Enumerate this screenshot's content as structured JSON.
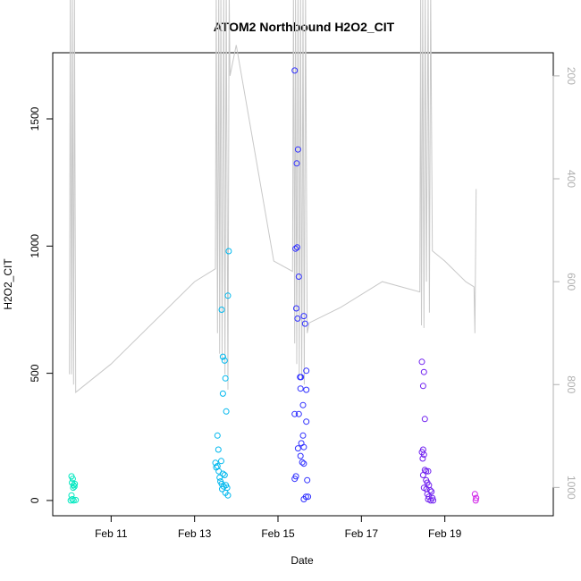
{
  "chart_data": {
    "type": "scatter",
    "title": "ATOM2 Northbound H2O2_CIT",
    "xlabel": "Date",
    "ylabel": "H2O2_CIT",
    "x_unit": "days since Feb 10 00:00",
    "xlim": [
      9.6,
      21.6
    ],
    "ylim": [
      -60,
      1760
    ],
    "x_ticks": [
      {
        "value": 11,
        "label": "Feb 11"
      },
      {
        "value": 13,
        "label": "Feb 13"
      },
      {
        "value": 15,
        "label": "Feb 15"
      },
      {
        "value": 17,
        "label": "Feb 17"
      },
      {
        "value": 19,
        "label": "Feb 19"
      }
    ],
    "y_ticks": [
      {
        "value": 0,
        "label": "0"
      },
      {
        "value": 500,
        "label": "500"
      },
      {
        "value": 1000,
        "label": "1000"
      },
      {
        "value": 1500,
        "label": "1500"
      }
    ],
    "y2lim": [
      155,
      1055
    ],
    "y2_ticks": [
      {
        "value": 200,
        "label": "200"
      },
      {
        "value": 400,
        "label": "400"
      },
      {
        "value": 600,
        "label": "600"
      },
      {
        "value": 800,
        "label": "800"
      },
      {
        "value": 1000,
        "label": "1000"
      }
    ],
    "y2_reversed": true,
    "grid": false,
    "series": [
      {
        "color": "#00e8c0",
        "points": [
          [
            10.05,
            95
          ],
          [
            10.08,
            85
          ],
          [
            10.06,
            70
          ],
          [
            10.1,
            60
          ],
          [
            10.12,
            55
          ],
          [
            10.09,
            50
          ],
          [
            10.13,
            65
          ],
          [
            10.05,
            20
          ],
          [
            10.07,
            5
          ],
          [
            10.1,
            0
          ],
          [
            10.15,
            2
          ],
          [
            10.03,
            0
          ]
        ]
      },
      {
        "color": "#00b8ee",
        "points": [
          [
            13.5,
            148
          ],
          [
            13.55,
            135
          ],
          [
            13.58,
            115
          ],
          [
            13.52,
            130
          ],
          [
            13.6,
            90
          ],
          [
            13.62,
            75
          ],
          [
            13.65,
            65
          ],
          [
            13.7,
            55
          ],
          [
            13.68,
            105
          ],
          [
            13.72,
            100
          ],
          [
            13.75,
            60
          ],
          [
            13.78,
            50
          ],
          [
            13.66,
            45
          ],
          [
            13.8,
            20
          ],
          [
            13.74,
            30
          ],
          [
            13.57,
            200
          ],
          [
            13.55,
            255
          ],
          [
            13.64,
            155
          ],
          [
            13.68,
            420
          ],
          [
            13.74,
            480
          ],
          [
            13.72,
            550
          ],
          [
            13.68,
            565
          ],
          [
            13.65,
            750
          ],
          [
            13.8,
            805
          ],
          [
            13.82,
            980
          ],
          [
            13.76,
            350
          ]
        ]
      },
      {
        "color": "#3030ff",
        "points": [
          [
            15.4,
            1690
          ],
          [
            15.48,
            1380
          ],
          [
            15.45,
            1325
          ],
          [
            15.42,
            990
          ],
          [
            15.46,
            995
          ],
          [
            15.5,
            880
          ],
          [
            15.62,
            725
          ],
          [
            15.44,
            755
          ],
          [
            15.47,
            715
          ],
          [
            15.65,
            695
          ],
          [
            15.68,
            510
          ],
          [
            15.55,
            485
          ],
          [
            15.53,
            485
          ],
          [
            15.54,
            440
          ],
          [
            15.68,
            435
          ],
          [
            15.6,
            375
          ],
          [
            15.4,
            340
          ],
          [
            15.5,
            340
          ],
          [
            15.68,
            310
          ],
          [
            15.6,
            255
          ],
          [
            15.56,
            225
          ],
          [
            15.62,
            210
          ],
          [
            15.48,
            205
          ],
          [
            15.54,
            175
          ],
          [
            15.58,
            150
          ],
          [
            15.62,
            145
          ],
          [
            15.43,
            95
          ],
          [
            15.4,
            85
          ],
          [
            15.7,
            80
          ],
          [
            15.62,
            5
          ],
          [
            15.67,
            15
          ],
          [
            15.72,
            15
          ]
        ]
      },
      {
        "color": "#7020f0",
        "points": [
          [
            18.45,
            545
          ],
          [
            18.5,
            505
          ],
          [
            18.48,
            450
          ],
          [
            18.52,
            320
          ],
          [
            18.45,
            190
          ],
          [
            18.48,
            200
          ],
          [
            18.5,
            180
          ],
          [
            18.47,
            165
          ],
          [
            18.52,
            120
          ],
          [
            18.55,
            115
          ],
          [
            18.6,
            115
          ],
          [
            18.48,
            100
          ],
          [
            18.55,
            80
          ],
          [
            18.58,
            70
          ],
          [
            18.62,
            60
          ],
          [
            18.5,
            50
          ],
          [
            18.56,
            45
          ],
          [
            18.65,
            40
          ],
          [
            18.68,
            35
          ],
          [
            18.58,
            25
          ],
          [
            18.62,
            15
          ],
          [
            18.7,
            10
          ],
          [
            18.6,
            5
          ],
          [
            18.66,
            0
          ],
          [
            18.72,
            0
          ]
        ]
      },
      {
        "color": "#d020e8",
        "points": [
          [
            19.72,
            25
          ],
          [
            19.75,
            10
          ],
          [
            19.74,
            0
          ]
        ]
      }
    ],
    "secondary_line": {
      "name": "",
      "color": "#c8c8c8",
      "points": [
        [
          10.0,
          780
        ],
        [
          10.02,
          35
        ],
        [
          10.05,
          780
        ],
        [
          10.07,
          35
        ],
        [
          10.1,
          800
        ],
        [
          10.12,
          35
        ],
        [
          10.15,
          815
        ],
        [
          11.0,
          760
        ],
        [
          13.0,
          600
        ],
        [
          13.5,
          575
        ],
        [
          13.52,
          35
        ],
        [
          13.55,
          700
        ],
        [
          13.58,
          35
        ],
        [
          13.6,
          740
        ],
        [
          13.63,
          35
        ],
        [
          13.66,
          750
        ],
        [
          13.7,
          35
        ],
        [
          13.73,
          780
        ],
        [
          13.76,
          35
        ],
        [
          13.8,
          810
        ],
        [
          13.83,
          35
        ],
        [
          13.85,
          200
        ],
        [
          14.0,
          140
        ],
        [
          14.9,
          560
        ],
        [
          15.35,
          580
        ],
        [
          15.37,
          35
        ],
        [
          15.4,
          720
        ],
        [
          15.42,
          35
        ],
        [
          15.45,
          760
        ],
        [
          15.48,
          35
        ],
        [
          15.51,
          780
        ],
        [
          15.54,
          35
        ],
        [
          15.57,
          790
        ],
        [
          15.6,
          35
        ],
        [
          15.63,
          800
        ],
        [
          15.66,
          35
        ],
        [
          15.7,
          700
        ],
        [
          15.75,
          680
        ],
        [
          16.5,
          650
        ],
        [
          17.5,
          600
        ],
        [
          18.4,
          620
        ],
        [
          18.42,
          35
        ],
        [
          18.44,
          685
        ],
        [
          18.47,
          35
        ],
        [
          18.5,
          690
        ],
        [
          18.53,
          35
        ],
        [
          18.56,
          600
        ],
        [
          18.6,
          35
        ],
        [
          18.63,
          660
        ],
        [
          18.66,
          35
        ],
        [
          18.7,
          540
        ],
        [
          19.0,
          560
        ],
        [
          19.5,
          600
        ],
        [
          19.7,
          610
        ],
        [
          19.72,
          700
        ],
        [
          19.75,
          420
        ]
      ]
    }
  }
}
